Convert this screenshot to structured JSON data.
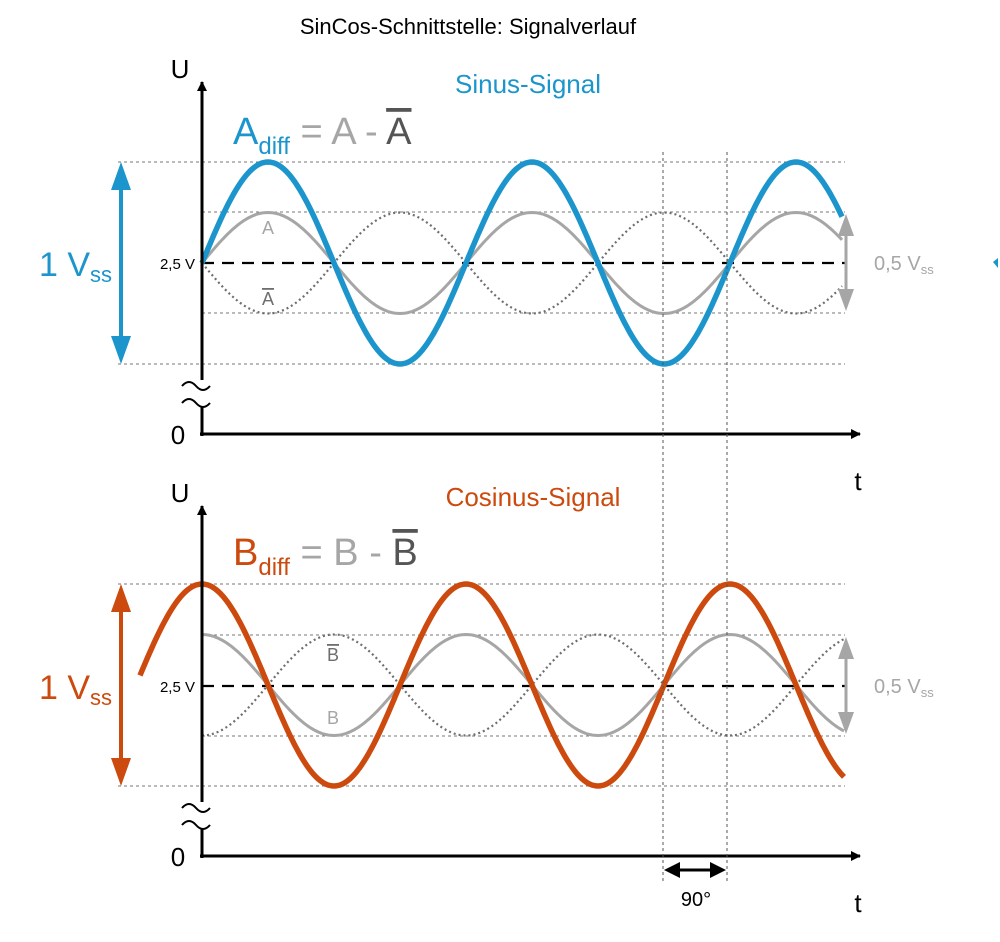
{
  "title": "SinCos-Schnittstelle: Signalverlauf",
  "colors": {
    "sin": "#1b95cc",
    "cos": "#cc4a0e",
    "aux": "#a6a6a6",
    "inverted": "#6e6e6e",
    "axis": "#000000",
    "dark_text": "#555555"
  },
  "panels": [
    {
      "id": "sin",
      "axis_y_label": "U",
      "axis_x_label": "t",
      "zero_label": "0",
      "signal_title": "Sinus-Signal",
      "formula": {
        "main": "A",
        "sub": "diff",
        "eq": "=",
        "term1": "A",
        "minus": "-",
        "term2": "A"
      },
      "amplitude_label": {
        "value": "1",
        "unit": "V",
        "sub": "ss"
      },
      "offset_label": "2,5 V",
      "aux_amplitude_label": {
        "value": "0,5",
        "unit": "V",
        "sub": "ss"
      },
      "curve_labels": {
        "normal": "A",
        "inverted": "A"
      },
      "phase_deg": 0
    },
    {
      "id": "cos",
      "axis_y_label": "U",
      "axis_x_label": "t",
      "zero_label": "0",
      "signal_title": "Cosinus-Signal",
      "formula": {
        "main": "B",
        "sub": "diff",
        "eq": "=",
        "term1": "B",
        "minus": "-",
        "term2": "B"
      },
      "amplitude_label": {
        "value": "1",
        "unit": "V",
        "sub": "ss"
      },
      "offset_label": "2,5 V",
      "aux_amplitude_label": {
        "value": "0,5",
        "unit": "V",
        "sub": "ss"
      },
      "curve_labels": {
        "normal": "B",
        "inverted": "B"
      },
      "phase_deg": 90
    }
  ],
  "phase_marker": "90°"
}
